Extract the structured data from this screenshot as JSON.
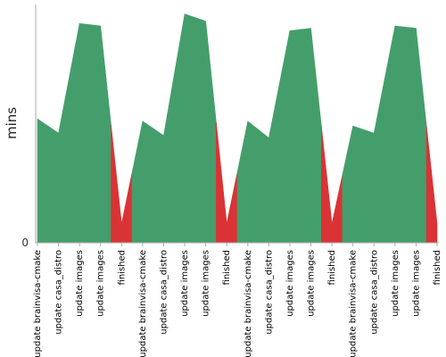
{
  "chart_data": {
    "type": "area",
    "title": "",
    "xlabel": "",
    "ylabel": "mins",
    "y_ticks": [
      "0"
    ],
    "ylim": [
      0,
      100
    ],
    "grid": false,
    "legend": "none",
    "categories": [
      "update brainvisa-cmake",
      "update casa_distro",
      "update images",
      "update images",
      "finished",
      "update brainvisa-cmake",
      "update casa_distro",
      "update images",
      "update images",
      "finished",
      "update brainvisa-cmake",
      "update casa_distro",
      "update images",
      "update images",
      "finished",
      "update brainvisa-cmake",
      "update casa_distro",
      "update images",
      "update images",
      "finished"
    ],
    "values": [
      52,
      46,
      92,
      91,
      8,
      51,
      45,
      96,
      93,
      8,
      51,
      44,
      89,
      90,
      8,
      49,
      46,
      91,
      90,
      8
    ],
    "status": [
      "ok",
      "ok",
      "ok",
      "ok",
      "failed",
      "ok",
      "ok",
      "ok",
      "ok",
      "failed",
      "ok",
      "ok",
      "ok",
      "ok",
      "failed",
      "ok",
      "ok",
      "ok",
      "ok",
      "failed"
    ],
    "colors": {
      "ok": "#449e6b",
      "failed": "#d93336",
      "axis": "#aaaaaa"
    }
  }
}
